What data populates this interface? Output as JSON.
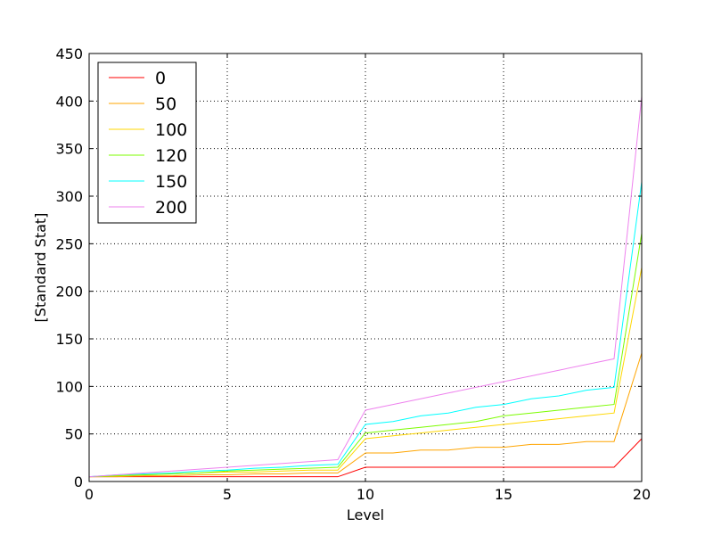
{
  "chart_data": {
    "type": "line",
    "title": "",
    "xlabel": "Level",
    "ylabel": "[Standard Stat]",
    "xlim": [
      0,
      20
    ],
    "ylim": [
      0,
      450
    ],
    "xticks": [
      0,
      5,
      10,
      15,
      20
    ],
    "yticks": [
      0,
      50,
      100,
      150,
      200,
      250,
      300,
      350,
      400,
      450
    ],
    "grid": true,
    "legend_position": "top-left",
    "x": [
      0,
      1,
      2,
      3,
      4,
      5,
      6,
      7,
      8,
      9,
      10,
      11,
      12,
      13,
      14,
      15,
      16,
      17,
      18,
      19,
      20
    ],
    "series": [
      {
        "name": "0",
        "color": "#ff0000",
        "values": [
          5,
          5,
          5,
          5,
          5,
          5,
          5,
          5,
          5,
          5,
          15,
          15,
          15,
          15,
          15,
          15,
          15,
          15,
          15,
          15,
          45
        ]
      },
      {
        "name": "50",
        "color": "#ffa500",
        "values": [
          5,
          5,
          6,
          6,
          7,
          7,
          8,
          8,
          9,
          9,
          30,
          30,
          33,
          33,
          36,
          36,
          39,
          39,
          42,
          42,
          135
        ]
      },
      {
        "name": "100",
        "color": "#ffd700",
        "values": [
          5,
          6,
          7,
          8,
          9,
          10,
          10,
          11,
          12,
          12,
          45,
          48,
          51,
          54,
          57,
          60,
          63,
          66,
          69,
          72,
          225
        ]
      },
      {
        "name": "120",
        "color": "#7cfc00",
        "values": [
          5,
          6,
          7,
          8,
          9,
          11,
          12,
          13,
          14,
          15,
          51,
          54,
          57,
          60,
          63,
          69,
          72,
          75,
          78,
          81,
          261
        ]
      },
      {
        "name": "150",
        "color": "#00ffff",
        "values": [
          5,
          7,
          8,
          9,
          11,
          12,
          14,
          15,
          17,
          18,
          60,
          63,
          69,
          72,
          78,
          81,
          87,
          90,
          96,
          99,
          315
        ]
      },
      {
        "name": "200",
        "color": "#ee82ee",
        "values": [
          5,
          7,
          9,
          11,
          13,
          15,
          17,
          19,
          21,
          23,
          75,
          81,
          87,
          93,
          99,
          105,
          111,
          117,
          123,
          129,
          405
        ]
      }
    ]
  }
}
